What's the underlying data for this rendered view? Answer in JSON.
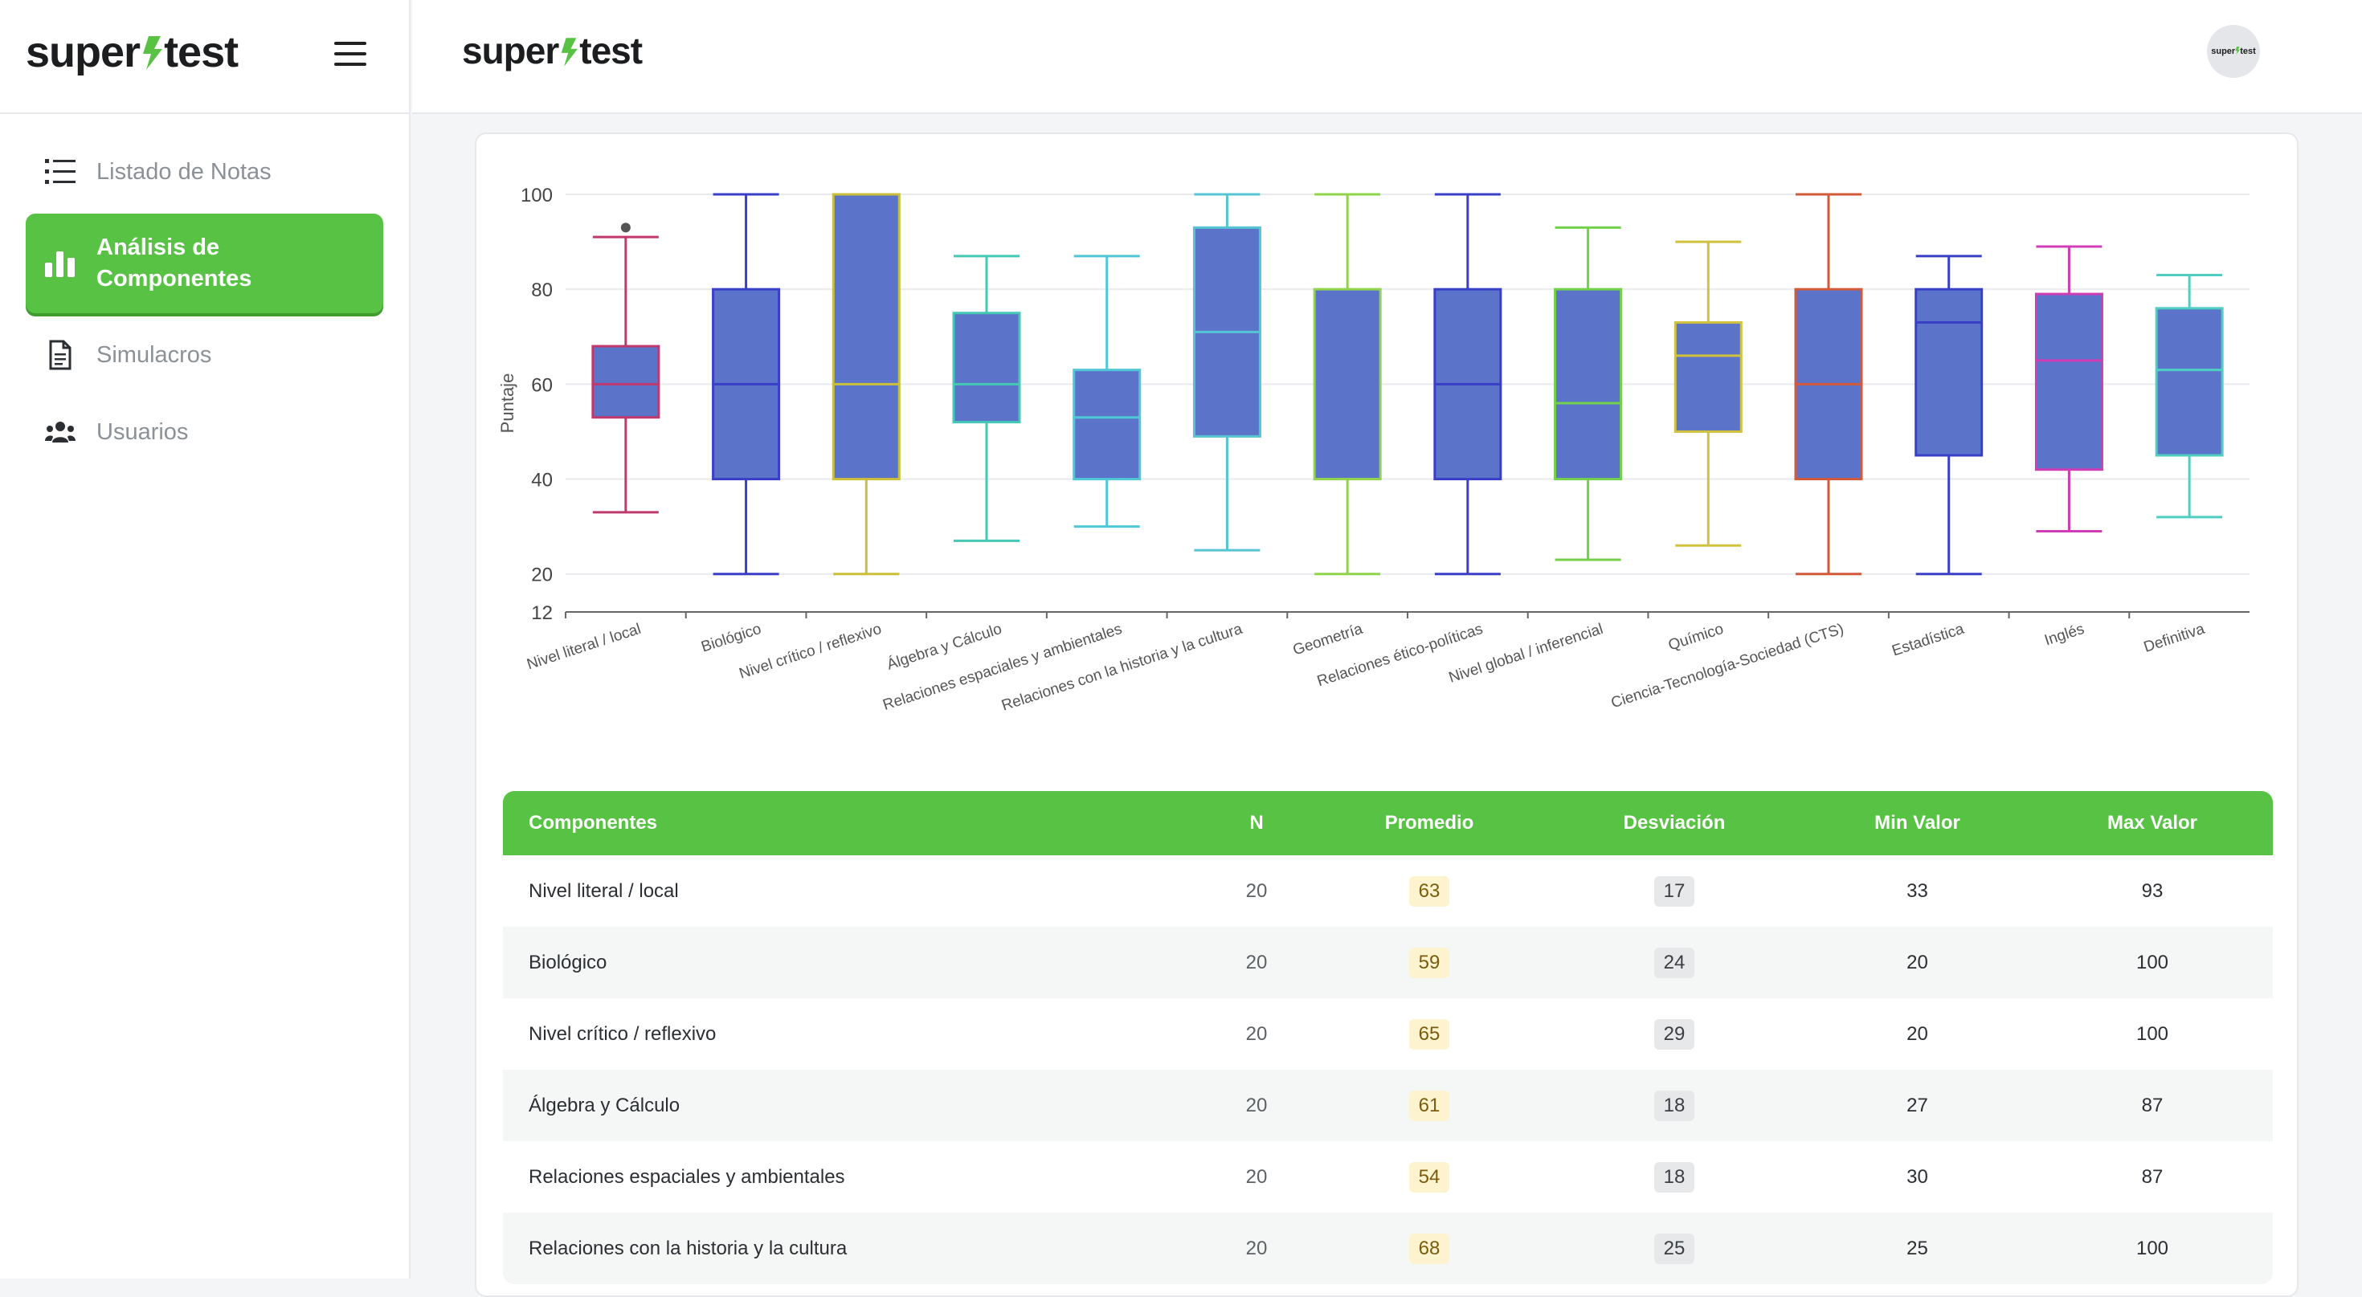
{
  "sidebar": {
    "logo": {
      "left": "super",
      "right": "test"
    },
    "items": [
      {
        "label": "Listado de Notas",
        "icon": "list-icon",
        "active": false
      },
      {
        "label": "Análisis de Componentes",
        "icon": "bar-chart-icon",
        "active": true
      },
      {
        "label": "Simulacros",
        "icon": "document-icon",
        "active": false
      },
      {
        "label": "Usuarios",
        "icon": "users-icon",
        "active": false
      }
    ]
  },
  "topbar": {
    "logo": {
      "left": "super",
      "right": "test"
    },
    "avatar": {
      "left": "super",
      "right": "test"
    }
  },
  "colors": {
    "brand_green": "#58c244",
    "box_fill": "#5b74c9"
  },
  "chart_data": {
    "type": "box",
    "ylabel": "Puntaje",
    "ylim": [
      12,
      100
    ],
    "yticks": [
      12,
      20,
      40,
      60,
      80,
      100
    ],
    "grid": true,
    "series": [
      {
        "category": "Nivel literal / local",
        "min": 33,
        "q1": 53,
        "median": 60,
        "q3": 68,
        "max": 91,
        "outliers": [
          93
        ],
        "color": "#c0396e"
      },
      {
        "category": "Biológico",
        "min": 20,
        "q1": 40,
        "median": 60,
        "q3": 80,
        "max": 100,
        "outliers": [],
        "color": "#3a3fc7"
      },
      {
        "category": "Nivel crítico / reflexivo",
        "min": 20,
        "q1": 40,
        "median": 60,
        "q3": 100,
        "max": 100,
        "outliers": [],
        "color": "#cbbf3a"
      },
      {
        "category": "Álgebra y Cálculo",
        "min": 27,
        "q1": 52,
        "median": 60,
        "q3": 75,
        "max": 87,
        "outliers": [],
        "color": "#45c9b5"
      },
      {
        "category": "Relaciones espaciales y ambientales",
        "min": 30,
        "q1": 40,
        "median": 53,
        "q3": 63,
        "max": 87,
        "outliers": [],
        "color": "#4fc7d6"
      },
      {
        "category": "Relaciones con la historia y la cultura",
        "min": 25,
        "q1": 49,
        "median": 71,
        "q3": 93,
        "max": 100,
        "outliers": [],
        "color": "#56c4d2"
      },
      {
        "category": "Geometría",
        "min": 20,
        "q1": 40,
        "median": 40,
        "q3": 80,
        "max": 100,
        "outliers": [],
        "color": "#8fd44a"
      },
      {
        "category": "Relaciones ético-políticas",
        "min": 20,
        "q1": 40,
        "median": 60,
        "q3": 80,
        "max": 100,
        "outliers": [],
        "color": "#3a3fc7"
      },
      {
        "category": "Nivel global / inferencial",
        "min": 23,
        "q1": 40,
        "median": 56,
        "q3": 80,
        "max": 93,
        "outliers": [],
        "color": "#72d04a"
      },
      {
        "category": "Químico",
        "min": 26,
        "q1": 50,
        "median": 66,
        "q3": 73,
        "max": 90,
        "outliers": [],
        "color": "#d1c23e"
      },
      {
        "category": "Ciencia-Tecnología-Sociedad (CTS)",
        "min": 20,
        "q1": 40,
        "median": 60,
        "q3": 80,
        "max": 100,
        "outliers": [],
        "color": "#d25a3a"
      },
      {
        "category": "Estadística",
        "min": 20,
        "q1": 45,
        "median": 73,
        "q3": 80,
        "max": 87,
        "outliers": [],
        "color": "#3a3fc7"
      },
      {
        "category": "Inglés",
        "min": 29,
        "q1": 42,
        "median": 65,
        "q3": 79,
        "max": 89,
        "outliers": [],
        "color": "#cf3cb4"
      },
      {
        "category": "Definitiva",
        "min": 32,
        "q1": 45,
        "median": 63,
        "q3": 76,
        "max": 83,
        "outliers": [],
        "color": "#4fcfc1"
      }
    ]
  },
  "table": {
    "headers": [
      "Componentes",
      "N",
      "Promedio",
      "Desviación",
      "Min Valor",
      "Max Valor"
    ],
    "rows": [
      [
        "Nivel literal / local",
        "20",
        "63",
        "17",
        "33",
        "93"
      ],
      [
        "Biológico",
        "20",
        "59",
        "24",
        "20",
        "100"
      ],
      [
        "Nivel crítico / reflexivo",
        "20",
        "65",
        "29",
        "20",
        "100"
      ],
      [
        "Álgebra y Cálculo",
        "20",
        "61",
        "18",
        "27",
        "87"
      ],
      [
        "Relaciones espaciales y ambientales",
        "20",
        "54",
        "18",
        "30",
        "87"
      ],
      [
        "Relaciones con la historia y la cultura",
        "20",
        "68",
        "25",
        "25",
        "100"
      ]
    ]
  }
}
